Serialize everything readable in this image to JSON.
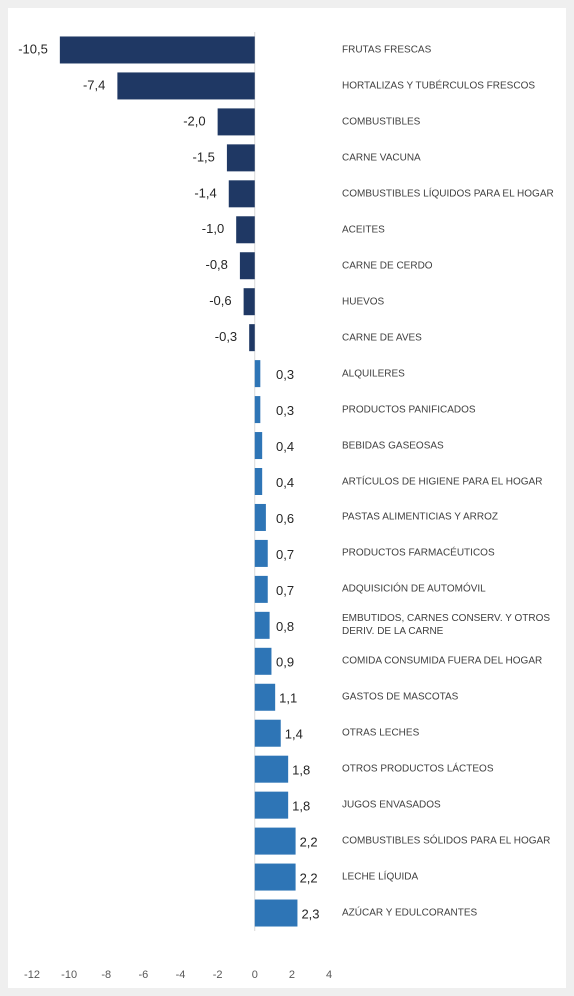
{
  "chart_data": {
    "type": "hbar",
    "categories": [
      "FRUTAS FRESCAS",
      "HORTALIZAS Y TUBÉRCULOS FRESCOS",
      "COMBUSTIBLES",
      "CARNE VACUNA",
      "COMBUSTIBLES LÍQUIDOS PARA EL HOGAR",
      "ACEITES",
      "CARNE DE CERDO",
      "HUEVOS",
      "CARNE DE AVES",
      "ALQUILERES",
      "PRODUCTOS PANIFICADOS",
      "BEBIDAS GASEOSAS",
      "ARTÍCULOS DE HIGIENE PARA EL HOGAR",
      "PASTAS ALIMENTICIAS Y ARROZ",
      "PRODUCTOS FARMACÉUTICOS",
      "ADQUISICIÓN DE AUTOMÓVIL",
      "EMBUTIDOS, CARNES CONSERV. Y OTROS DERIV. DE LA CARNE",
      "COMIDA CONSUMIDA FUERA DEL HOGAR",
      "GASTOS DE MASCOTAS",
      "OTRAS LECHES",
      "OTROS PRODUCTOS LÁCTEOS",
      "JUGOS ENVASADOS",
      "COMBUSTIBLES SÓLIDOS PARA EL HOGAR",
      "LECHE LÍQUIDA",
      "AZÚCAR Y EDULCORANTES"
    ],
    "values": [
      -10.5,
      -7.4,
      -2.0,
      -1.5,
      -1.4,
      -1.0,
      -0.8,
      -0.6,
      -0.3,
      0.3,
      0.3,
      0.4,
      0.4,
      0.6,
      0.7,
      0.7,
      0.8,
      0.9,
      1.1,
      1.4,
      1.8,
      1.8,
      2.2,
      2.2,
      2.3
    ],
    "value_labels": [
      "-10,5",
      "-7,4",
      "-2,0",
      "-1,5",
      "-1,4",
      "-1,0",
      "-0,8",
      "-0,6",
      "-0,3",
      "0,3",
      "0,3",
      "0,4",
      "0,4",
      "0,6",
      "0,7",
      "0,7",
      "0,8",
      "0,9",
      "1,1",
      "1,4",
      "1,8",
      "1,8",
      "2,2",
      "2,2",
      "2,3"
    ],
    "negative_color": "#1f3864",
    "positive_color": "#2e75b6",
    "xlim": [
      -12,
      4
    ],
    "xticks": [
      -12,
      -10,
      -8,
      -6,
      -4,
      -2,
      0,
      2,
      4
    ]
  }
}
